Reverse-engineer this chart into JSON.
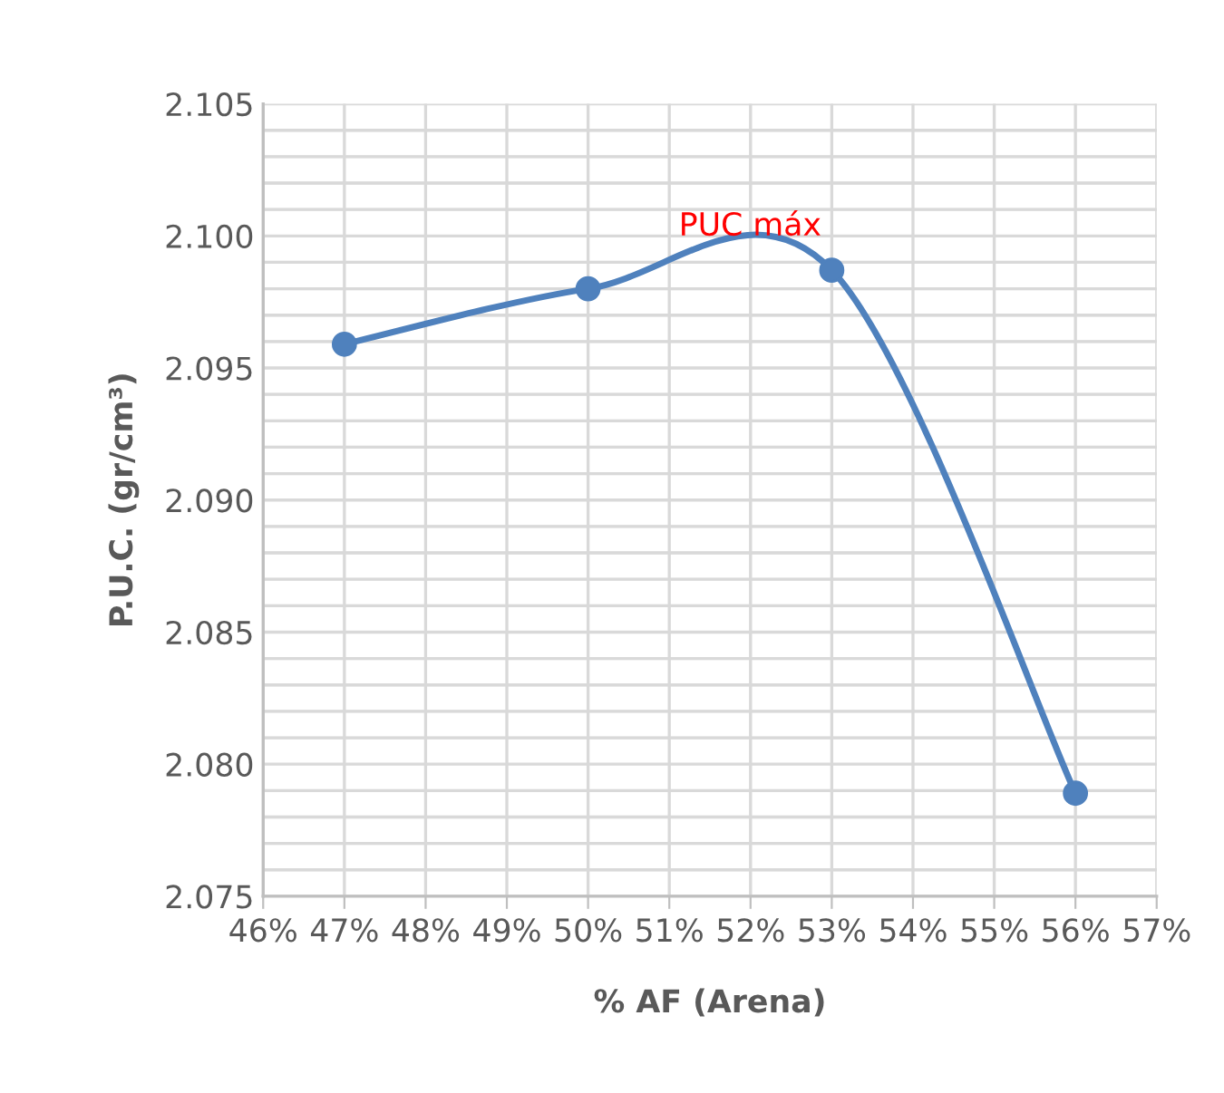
{
  "chart_data": {
    "type": "line",
    "xlabel": "% AF (Arena)",
    "ylabel": "P.U.C. (gr/cm³)",
    "x": [
      47,
      50,
      53,
      56
    ],
    "series": [
      {
        "color": "#4f81bd",
        "values": [
          2.0959,
          2.098,
          2.0987,
          2.0789
        ]
      }
    ],
    "marker": "circle",
    "line_style": "solid",
    "grid": true,
    "xlim": [
      46,
      57
    ],
    "xticks": [
      {
        "value": 46,
        "label": "46%"
      },
      {
        "value": 47,
        "label": "47%"
      },
      {
        "value": 48,
        "label": "48%"
      },
      {
        "value": 49,
        "label": "49%"
      },
      {
        "value": 50,
        "label": "50%"
      },
      {
        "value": 51,
        "label": "51%"
      },
      {
        "value": 52,
        "label": "52%"
      },
      {
        "value": 53,
        "label": "53%"
      },
      {
        "value": 54,
        "label": "54%"
      },
      {
        "value": 55,
        "label": "55%"
      },
      {
        "value": 56,
        "label": "56%"
      },
      {
        "value": 57,
        "label": "57%"
      }
    ],
    "ylim": [
      2.075,
      2.105
    ],
    "yticks": [
      {
        "value": 2.075,
        "label": "2.075"
      },
      {
        "value": 2.076,
        "label": null
      },
      {
        "value": 2.077,
        "label": null
      },
      {
        "value": 2.078,
        "label": null
      },
      {
        "value": 2.079,
        "label": null
      },
      {
        "value": 2.08,
        "label": "2.080"
      },
      {
        "value": 2.081,
        "label": null
      },
      {
        "value": 2.082,
        "label": null
      },
      {
        "value": 2.083,
        "label": null
      },
      {
        "value": 2.084,
        "label": null
      },
      {
        "value": 2.085,
        "label": "2.085"
      },
      {
        "value": 2.086,
        "label": null
      },
      {
        "value": 2.087,
        "label": null
      },
      {
        "value": 2.088,
        "label": null
      },
      {
        "value": 2.089,
        "label": null
      },
      {
        "value": 2.09,
        "label": "2.090"
      },
      {
        "value": 2.091,
        "label": null
      },
      {
        "value": 2.092,
        "label": null
      },
      {
        "value": 2.093,
        "label": null
      },
      {
        "value": 2.094,
        "label": null
      },
      {
        "value": 2.095,
        "label": "2.095"
      },
      {
        "value": 2.096,
        "label": null
      },
      {
        "value": 2.097,
        "label": null
      },
      {
        "value": 2.098,
        "label": null
      },
      {
        "value": 2.099,
        "label": null
      },
      {
        "value": 2.1,
        "label": "2.100"
      },
      {
        "value": 2.101,
        "label": null
      },
      {
        "value": 2.102,
        "label": null
      },
      {
        "value": 2.103,
        "label": null
      },
      {
        "value": 2.104,
        "label": null
      },
      {
        "value": 2.105,
        "label": "2.105"
      }
    ],
    "annotations": [
      "PUC máx"
    ]
  }
}
